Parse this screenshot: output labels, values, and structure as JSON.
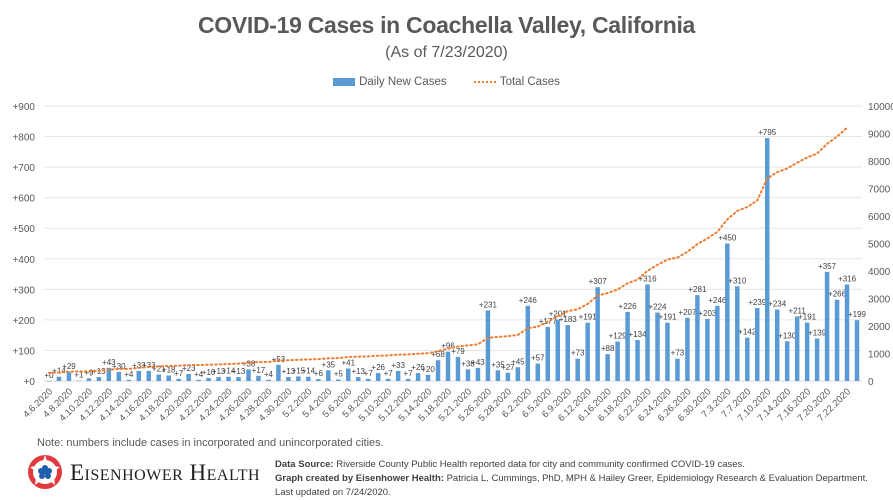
{
  "chart_data": {
    "type": "bar",
    "title": "COVID-19 Cases in Coachella Valley, California",
    "subtitle": "(As of 7/23/2020)",
    "legend": {
      "position": "top-center",
      "entries": [
        {
          "name": "Daily New Cases",
          "color": "#5b9bd5",
          "kind": "bar"
        },
        {
          "name": "Total Cases",
          "color": "#ed7d31",
          "kind": "dotted-line"
        }
      ]
    },
    "left_axis": {
      "label": "Daily New Cases",
      "ylim": [
        0,
        900
      ],
      "ticks": [
        "+0",
        "+100",
        "+200",
        "+300",
        "+400",
        "+500",
        "+600",
        "+700",
        "+800",
        "+900"
      ]
    },
    "right_axis": {
      "label": "Total Cases",
      "ylim": [
        0,
        10000
      ],
      "ticks": [
        "0",
        "1000",
        "2000",
        "3000",
        "4000",
        "5000",
        "6000",
        "7000",
        "8000",
        "9000",
        "10000"
      ]
    },
    "grid": true,
    "x_tick_labels": [
      "4.6.2020",
      "4.8.2020",
      "4.10.2020",
      "4.12.2020",
      "4.14.2020",
      "4.16.2020",
      "4.18.2020",
      "4.20.2020",
      "4.22.2020",
      "4.24.2020",
      "4.26.2020",
      "4.28.2020",
      "4.30.2020",
      "5.2.2020",
      "5.4.2020",
      "5.6.2020",
      "5.8.2020",
      "5.10.2020",
      "5.12.2020",
      "5.14.2020",
      "5.18.2020",
      "5.21.2020",
      "5.26.2020",
      "5.28.2020",
      "6.2.2020",
      "6.5.2020",
      "6.9.2020",
      "6.12.2020",
      "6.16.2020",
      "6.18.2020",
      "6.22.2020",
      "6.24.2020",
      "6.26.2020",
      "6.30.2020",
      "7.3.2020",
      "7.7.2020",
      "7.10.2020",
      "7.14.2020",
      "7.16.2020",
      "7.20.2020",
      "7.22.2020"
    ],
    "series": [
      {
        "name": "Daily New Cases",
        "values": [
          0,
          14,
          29,
          1,
          9,
          13,
          43,
          30,
          4,
          33,
          33,
          21,
          18,
          7,
          23,
          4,
          10,
          13,
          14,
          13,
          38,
          17,
          4,
          53,
          13,
          15,
          14,
          6,
          35,
          5,
          41,
          13,
          7,
          26,
          7,
          33,
          7,
          26,
          20,
          68,
          96,
          79,
          38,
          43,
          231,
          35,
          27,
          45,
          246,
          57,
          177,
          201,
          183,
          73,
          191,
          307,
          88,
          129,
          226,
          134,
          316,
          224,
          191,
          73,
          207,
          281,
          203,
          246,
          450,
          310,
          142,
          239,
          795,
          234,
          130,
          211,
          191,
          139,
          357,
          266,
          316,
          199
        ]
      },
      {
        "name": "Total Cases",
        "base": 300,
        "note": "cumulative of daily new cases; line ends at second-to-last bar"
      }
    ]
  },
  "footer": {
    "note": "Note: numbers include cases in incorporated and unincorporated cities.",
    "brand": "Eisenhower Health",
    "source_label": "Data Source:",
    "source_text": " Riverside County Public Health reported data for city and community confirmed COVID-19 cases.",
    "credit_label": "Graph created by Eisenhower Health:",
    "credit_text": " Patricia L. Cummings, PhD, MPH & Hailey Greer, Epidemiology Research & Evaluation Department. Last updated on 7/24/2020."
  }
}
